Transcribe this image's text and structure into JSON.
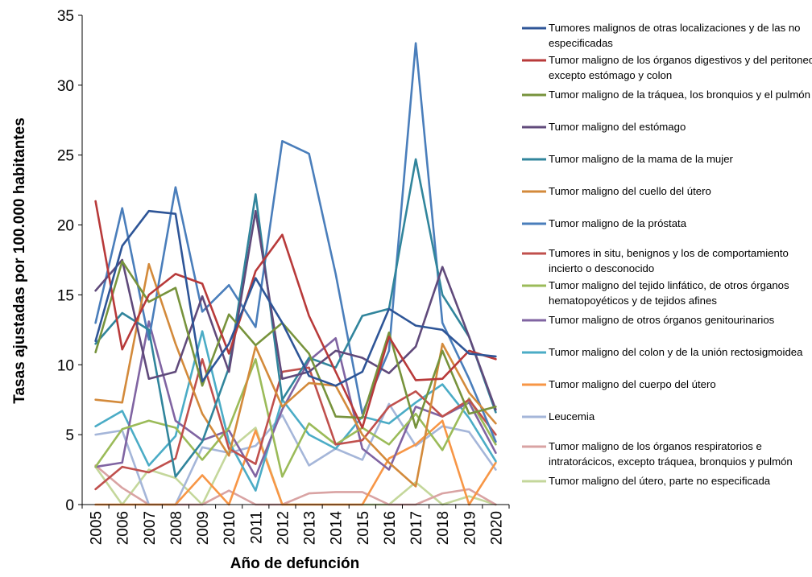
{
  "chart_data": {
    "type": "line",
    "title": "",
    "xlabel": "Año de defunción",
    "ylabel": "Tasas ajustadas por 100.000 habitantes",
    "ylim": [
      0,
      35
    ],
    "yticks": [
      0,
      5,
      10,
      15,
      20,
      25,
      30,
      35
    ],
    "grid": false,
    "legend_position": "right",
    "categories": [
      "2005",
      "2006",
      "2007",
      "2008",
      "2009",
      "2010",
      "2011",
      "2012",
      "2013",
      "2014",
      "2015",
      "2016",
      "2017",
      "2018",
      "2019",
      "2020"
    ],
    "series": [
      {
        "name": [
          "Tumores malignos de otras localizaciones y de las no",
          "especificadas"
        ],
        "color": "#2E5597",
        "values": [
          11.7,
          18.5,
          21.0,
          20.8,
          8.8,
          11.5,
          16.2,
          13.0,
          9.2,
          8.5,
          9.5,
          14.0,
          12.8,
          12.5,
          10.8,
          10.6
        ]
      },
      {
        "name": [
          "Tumor maligno de los órganos digestivos y del peritoneo,",
          "excepto estómago y colon"
        ],
        "color": "#B83A3A",
        "values": [
          21.7,
          11.1,
          15.0,
          16.5,
          15.8,
          10.8,
          16.7,
          19.3,
          13.5,
          9.5,
          5.5,
          12.0,
          8.9,
          9.0,
          11.0,
          10.4
        ]
      },
      {
        "name": [
          "Tumor maligno de la tráquea, los bronquios y el pulmón"
        ],
        "color": "#77933C",
        "values": [
          10.9,
          17.4,
          14.5,
          15.5,
          8.5,
          13.6,
          11.4,
          13.0,
          10.8,
          6.3,
          6.2,
          12.3,
          5.5,
          11.0,
          6.5,
          7.0
        ]
      },
      {
        "name": [
          "Tumor maligno del estómago"
        ],
        "color": "#604A7B",
        "values": [
          15.3,
          17.5,
          9.0,
          9.5,
          14.9,
          9.5,
          21.0,
          9.0,
          9.5,
          11.0,
          10.5,
          9.4,
          11.3,
          17.0,
          12.0,
          6.8
        ]
      },
      {
        "name": [
          "Tumor maligno de la mama de la mujer"
        ],
        "color": "#31859C",
        "values": [
          11.5,
          13.7,
          12.5,
          2.0,
          4.5,
          9.8,
          22.2,
          7.5,
          10.5,
          9.8,
          13.5,
          14.0,
          24.7,
          15.0,
          12.0,
          6.6
        ]
      },
      {
        "name": [
          "Tumor maligno del cuello del útero"
        ],
        "color": "#D38A3B",
        "values": [
          7.5,
          7.3,
          17.2,
          11.5,
          6.5,
          3.5,
          11.3,
          7.0,
          8.7,
          8.5,
          5.0,
          3.0,
          1.3,
          11.5,
          8.0,
          5.8
        ]
      },
      {
        "name": [
          "Tumor maligno de la próstata"
        ],
        "color": "#4A7EBB",
        "values": [
          13.0,
          21.2,
          11.8,
          22.7,
          13.8,
          15.7,
          12.7,
          26.0,
          25.1,
          16.5,
          6.5,
          11.0,
          33.0,
          13.0,
          9.0,
          4.5
        ]
      },
      {
        "name": [
          "Tumores in situ, benignos y los de comportamiento",
          "incierto o desconocido"
        ],
        "color": "#C0504D",
        "values": [
          1.1,
          2.7,
          2.3,
          3.3,
          10.4,
          4.0,
          2.9,
          9.5,
          9.8,
          4.3,
          4.6,
          7.0,
          8.1,
          6.3,
          7.5,
          5.0
        ]
      },
      {
        "name": [
          "Tumor maligno del tejido linfático, de otros órganos",
          "hematopoyéticos y de tejidos afines"
        ],
        "color": "#9BBB59",
        "values": [
          2.7,
          5.4,
          6.0,
          5.5,
          3.2,
          5.5,
          10.4,
          2.0,
          5.8,
          4.3,
          5.5,
          4.3,
          6.5,
          3.9,
          7.6,
          4.3
        ]
      },
      {
        "name": [
          "Tumor maligno de otros órganos genitourinarios"
        ],
        "color": "#8064A2",
        "values": [
          2.7,
          3.0,
          13.1,
          6.0,
          4.6,
          5.3,
          2.0,
          6.8,
          10.3,
          11.9,
          4.0,
          2.5,
          7.0,
          6.3,
          7.3,
          3.7
        ]
      },
      {
        "name": [
          "Tumor maligno del colon y de la unión rectosigmoidea"
        ],
        "color": "#4BACC6",
        "values": [
          5.6,
          6.7,
          2.8,
          4.9,
          12.4,
          4.5,
          1.0,
          7.5,
          5.0,
          4.0,
          6.3,
          5.8,
          7.3,
          8.6,
          6.2,
          3.1
        ]
      },
      {
        "name": [
          "Tumor maligno del cuerpo del útero"
        ],
        "color": "#F79646",
        "values": [
          0,
          0,
          0,
          0,
          2.1,
          0,
          5.3,
          0,
          0,
          0,
          0,
          3.3,
          4.3,
          6.0,
          0,
          3.0
        ]
      },
      {
        "name": [
          "Leucemia"
        ],
        "color": "#A5B6D9",
        "values": [
          5.0,
          5.3,
          0,
          0,
          4.1,
          3.7,
          4.2,
          6.4,
          2.8,
          4.0,
          3.2,
          7.2,
          4.2,
          5.6,
          5.2,
          2.5
        ]
      },
      {
        "name": [
          "Tumor maligno de los órganos respiratorios e",
          "intratorácicos, excepto tráquea, bronquios y pulmón"
        ],
        "color": "#D9A3A3",
        "values": [
          2.8,
          1.2,
          0,
          0,
          0,
          1.0,
          0,
          0,
          0.8,
          0.9,
          0.9,
          0,
          0,
          0.8,
          1.1,
          0
        ]
      },
      {
        "name": [
          "Tumor maligno del útero, parte no especificada"
        ],
        "color": "#C4D79B",
        "values": [
          2.7,
          0,
          2.5,
          1.9,
          0,
          3.9,
          5.5,
          0,
          0,
          0,
          0,
          0,
          1.6,
          0,
          0.6,
          0
        ]
      }
    ]
  }
}
